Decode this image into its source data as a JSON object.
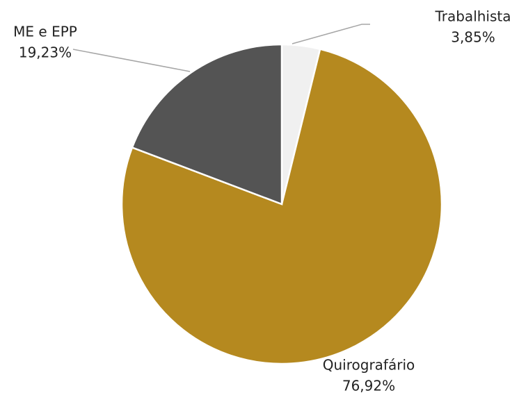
{
  "chart_data": {
    "type": "pie",
    "categories": [
      "Trabalhista",
      "Quirografário",
      "ME e EPP"
    ],
    "values": [
      3.85,
      76.92,
      19.23
    ],
    "value_labels": [
      "3,85%",
      "76,92%",
      "19,23%"
    ],
    "colors": [
      "#f0f0f0",
      "#b5891f",
      "#545454"
    ]
  }
}
